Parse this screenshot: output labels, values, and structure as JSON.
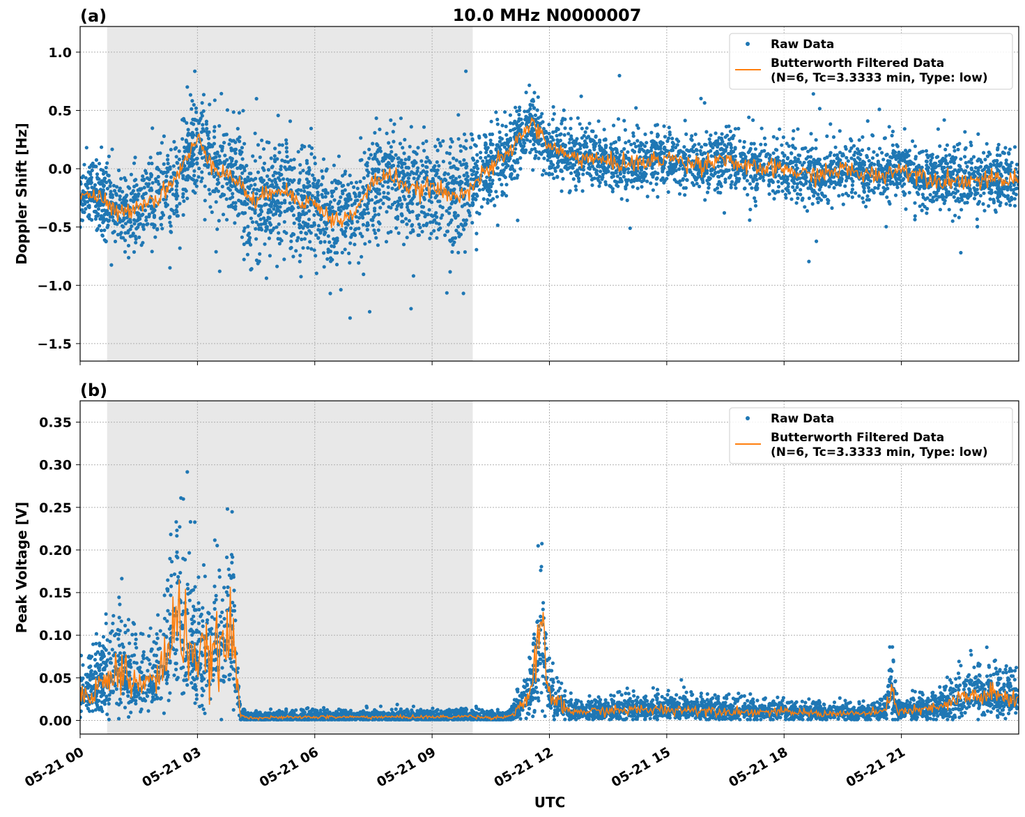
{
  "title": "10.0 MHz N0000007",
  "xlabel": "UTC",
  "colors": {
    "raw": "#1f77b4",
    "filtered": "#ff7f0e",
    "shade": "#e8e8e8",
    "grid": "#b0b0b0"
  },
  "legend": {
    "raw": "Raw Data",
    "filtered_line1": "Butterworth Filtered Data",
    "filtered_line2": "(N=6, Tc=3.3333 min, Type: low)",
    "placement": "top-right"
  },
  "x_ticks": [
    "05-21 00",
    "05-21 03",
    "05-21 06",
    "05-21 09",
    "05-21 12",
    "05-21 15",
    "05-21 18",
    "05-21 21"
  ],
  "chart_data": [
    {
      "type": "scatter",
      "panel_label": "(a)",
      "ylabel": "Doppler Shift [Hz]",
      "xlim_hours_utc": [
        0,
        24
      ],
      "ylim": [
        -1.65,
        1.22
      ],
      "y_ticks": [
        -1.5,
        -1.0,
        -0.5,
        0.0,
        0.5,
        1.0
      ],
      "y_tick_labels": [
        "−1.5",
        "−1.0",
        "−0.5",
        "0.0",
        "0.5",
        "1.0"
      ],
      "grid": true,
      "shaded_interval_hours": [
        0.69,
        10.04
      ],
      "filtered_hours": [
        0,
        0.5,
        1,
        1.5,
        2,
        2.5,
        3,
        3.5,
        4,
        4.5,
        5,
        5.5,
        6,
        6.5,
        7,
        7.5,
        8,
        8.5,
        9,
        9.5,
        10,
        10.5,
        11,
        11.5,
        12,
        12.5,
        13,
        13.5,
        14,
        14.5,
        15,
        15.5,
        16,
        16.5,
        17,
        17.5,
        18,
        18.5,
        19,
        19.5,
        20,
        20.5,
        21,
        21.5,
        22,
        22.5,
        23,
        23.5,
        24
      ],
      "filtered_values": [
        -0.2,
        -0.25,
        -0.4,
        -0.3,
        -0.25,
        -0.05,
        0.25,
        0.0,
        -0.1,
        -0.3,
        -0.15,
        -0.25,
        -0.3,
        -0.45,
        -0.4,
        -0.1,
        -0.05,
        -0.2,
        -0.15,
        -0.25,
        -0.15,
        0.0,
        0.15,
        0.4,
        0.2,
        0.1,
        0.1,
        0.05,
        0.05,
        0.05,
        0.1,
        0.05,
        0.05,
        0.1,
        0.0,
        0.0,
        0.0,
        -0.05,
        -0.05,
        0.0,
        -0.05,
        -0.05,
        0.0,
        -0.05,
        -0.1,
        -0.1,
        -0.1,
        -0.1,
        -0.1
      ],
      "raw_spread_hours": [
        0,
        4,
        10,
        12,
        24
      ],
      "raw_spread_sd": [
        0.12,
        0.25,
        0.2,
        0.12,
        0.12
      ]
    },
    {
      "type": "scatter",
      "panel_label": "(b)",
      "ylabel": "Peak Voltage [V]",
      "xlim_hours_utc": [
        0,
        24
      ],
      "ylim": [
        -0.016,
        0.375
      ],
      "y_ticks": [
        0.0,
        0.05,
        0.1,
        0.15,
        0.2,
        0.25,
        0.3,
        0.35
      ],
      "y_tick_labels": [
        "0.00",
        "0.05",
        "0.10",
        "0.15",
        "0.20",
        "0.25",
        "0.30",
        "0.35"
      ],
      "grid": true,
      "shaded_interval_hours": [
        0.69,
        10.04
      ],
      "filtered_hours": [
        0,
        0.5,
        1,
        1.5,
        2,
        2.5,
        3,
        3.5,
        3.9,
        4.1,
        4.5,
        6,
        8,
        9.5,
        10,
        10.5,
        11,
        11.5,
        11.8,
        12,
        12.5,
        14,
        15,
        16,
        17,
        18,
        19,
        20,
        20.6,
        20.75,
        20.9,
        21.5,
        22,
        22.5,
        23,
        23.5,
        24
      ],
      "filtered_values": [
        0.03,
        0.04,
        0.06,
        0.04,
        0.05,
        0.12,
        0.07,
        0.08,
        0.1,
        0.005,
        0.003,
        0.004,
        0.004,
        0.004,
        0.005,
        0.003,
        0.005,
        0.03,
        0.1,
        0.03,
        0.01,
        0.012,
        0.013,
        0.012,
        0.01,
        0.01,
        0.008,
        0.008,
        0.01,
        0.045,
        0.01,
        0.012,
        0.015,
        0.025,
        0.03,
        0.028,
        0.025
      ]
    }
  ]
}
